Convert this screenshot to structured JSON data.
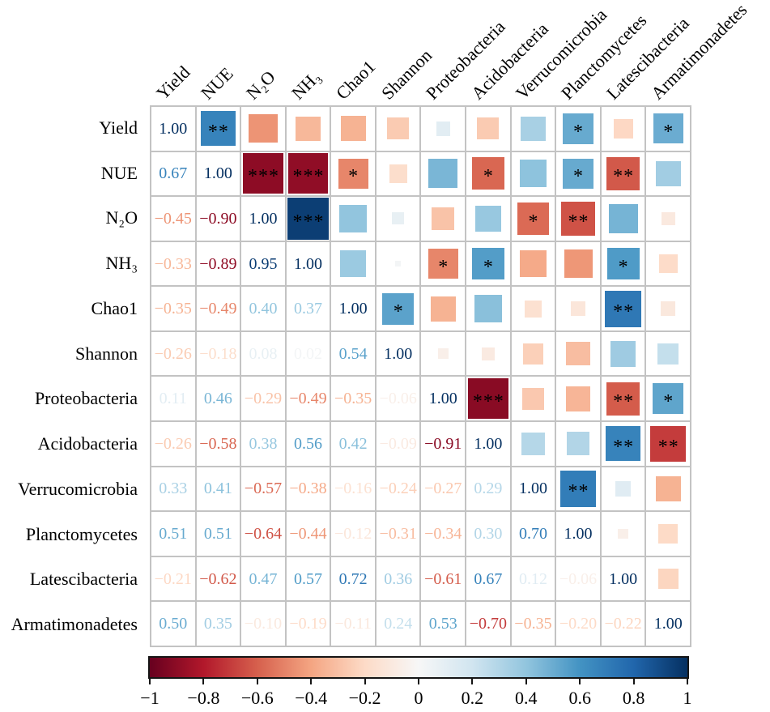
{
  "chart_data": {
    "type": "heatmap",
    "subtype": "correlation-matrix",
    "title": "",
    "layout": {
      "lower_triangle": "correlation coefficients as colored numbers",
      "diagonal": "1.00",
      "upper_triangle": "colored squares, area proportional to |r|, significance stars",
      "legend_position": "bottom colorbar",
      "grid": true
    },
    "variables": [
      "Yield",
      "NUE",
      "N₂O",
      "NH₃",
      "Chao1",
      "Shannon",
      "Proteobacteria",
      "Acidobacteria",
      "Verrucomicrobia",
      "Planctomycetes",
      "Latescibacteria",
      "Armatimonadetes"
    ],
    "matrix": [
      [
        1.0,
        0.67,
        -0.45,
        -0.33,
        -0.35,
        -0.26,
        0.11,
        -0.26,
        0.33,
        0.51,
        -0.21,
        0.5
      ],
      [
        0.67,
        1.0,
        -0.9,
        -0.89,
        -0.49,
        -0.18,
        0.46,
        -0.58,
        0.41,
        0.51,
        -0.62,
        0.35
      ],
      [
        -0.45,
        -0.9,
        1.0,
        0.95,
        0.4,
        0.08,
        -0.29,
        0.38,
        -0.57,
        -0.64,
        0.47,
        -0.1
      ],
      [
        -0.33,
        -0.89,
        0.95,
        1.0,
        0.37,
        0.02,
        -0.49,
        0.56,
        -0.38,
        -0.44,
        0.57,
        -0.19
      ],
      [
        -0.35,
        -0.49,
        0.4,
        0.37,
        1.0,
        0.54,
        -0.35,
        0.42,
        -0.16,
        -0.12,
        0.72,
        -0.11
      ],
      [
        -0.26,
        -0.18,
        0.08,
        0.02,
        0.54,
        1.0,
        -0.06,
        -0.09,
        -0.24,
        -0.31,
        0.36,
        0.24
      ],
      [
        0.11,
        0.46,
        -0.29,
        -0.49,
        -0.35,
        -0.06,
        1.0,
        -0.91,
        -0.27,
        -0.34,
        -0.61,
        0.53
      ],
      [
        -0.26,
        -0.58,
        0.38,
        0.56,
        0.42,
        -0.09,
        -0.91,
        1.0,
        0.29,
        0.3,
        0.67,
        -0.7
      ],
      [
        0.33,
        0.41,
        -0.57,
        -0.38,
        -0.16,
        -0.24,
        -0.27,
        0.29,
        1.0,
        0.7,
        0.12,
        -0.35
      ],
      [
        0.51,
        0.51,
        -0.64,
        -0.44,
        -0.12,
        -0.31,
        -0.34,
        0.3,
        0.7,
        1.0,
        -0.06,
        -0.2
      ],
      [
        -0.21,
        -0.62,
        0.47,
        0.57,
        0.72,
        0.36,
        -0.61,
        0.67,
        0.12,
        -0.06,
        1.0,
        -0.22
      ],
      [
        0.5,
        0.35,
        -0.1,
        -0.19,
        -0.11,
        0.24,
        0.53,
        -0.7,
        -0.35,
        -0.2,
        -0.22,
        1.0
      ]
    ],
    "significance": [
      {
        "row": 0,
        "col": 1,
        "stars": "**"
      },
      {
        "row": 0,
        "col": 9,
        "stars": "*"
      },
      {
        "row": 0,
        "col": 11,
        "stars": "*"
      },
      {
        "row": 1,
        "col": 2,
        "stars": "***"
      },
      {
        "row": 1,
        "col": 3,
        "stars": "***"
      },
      {
        "row": 1,
        "col": 4,
        "stars": "*"
      },
      {
        "row": 1,
        "col": 7,
        "stars": "*"
      },
      {
        "row": 1,
        "col": 9,
        "stars": "*"
      },
      {
        "row": 1,
        "col": 10,
        "stars": "**"
      },
      {
        "row": 2,
        "col": 3,
        "stars": "***"
      },
      {
        "row": 2,
        "col": 8,
        "stars": "*"
      },
      {
        "row": 2,
        "col": 9,
        "stars": "**"
      },
      {
        "row": 3,
        "col": 6,
        "stars": "*"
      },
      {
        "row": 3,
        "col": 7,
        "stars": "*"
      },
      {
        "row": 3,
        "col": 10,
        "stars": "*"
      },
      {
        "row": 4,
        "col": 5,
        "stars": "*"
      },
      {
        "row": 4,
        "col": 10,
        "stars": "**"
      },
      {
        "row": 6,
        "col": 7,
        "stars": "***"
      },
      {
        "row": 6,
        "col": 10,
        "stars": "**"
      },
      {
        "row": 6,
        "col": 11,
        "stars": "*"
      },
      {
        "row": 7,
        "col": 10,
        "stars": "**"
      },
      {
        "row": 7,
        "col": 11,
        "stars": "**"
      },
      {
        "row": 8,
        "col": 9,
        "stars": "**"
      }
    ],
    "colormap_anchors": [
      {
        "v": -1.0,
        "c": "#67001f"
      },
      {
        "v": -0.8,
        "c": "#b2182b"
      },
      {
        "v": -0.6,
        "c": "#d6604d"
      },
      {
        "v": -0.4,
        "c": "#f4a582"
      },
      {
        "v": -0.2,
        "c": "#fddbc7"
      },
      {
        "v": 0.0,
        "c": "#f7f7f7"
      },
      {
        "v": 0.2,
        "c": "#d1e5f0"
      },
      {
        "v": 0.4,
        "c": "#92c5de"
      },
      {
        "v": 0.6,
        "c": "#4393c3"
      },
      {
        "v": 0.8,
        "c": "#2166ac"
      },
      {
        "v": 1.0,
        "c": "#053061"
      }
    ],
    "colorbar_ticks": [
      "−1",
      "−0.8",
      "−0.6",
      "−0.4",
      "−0.2",
      "0",
      "0.2",
      "0.4",
      "0.6",
      "0.8",
      "1"
    ],
    "colorbar_range": [
      -1,
      1
    ],
    "star_color": "#000000",
    "grid_color": "#c3c3c3",
    "minus_sign": "−"
  }
}
